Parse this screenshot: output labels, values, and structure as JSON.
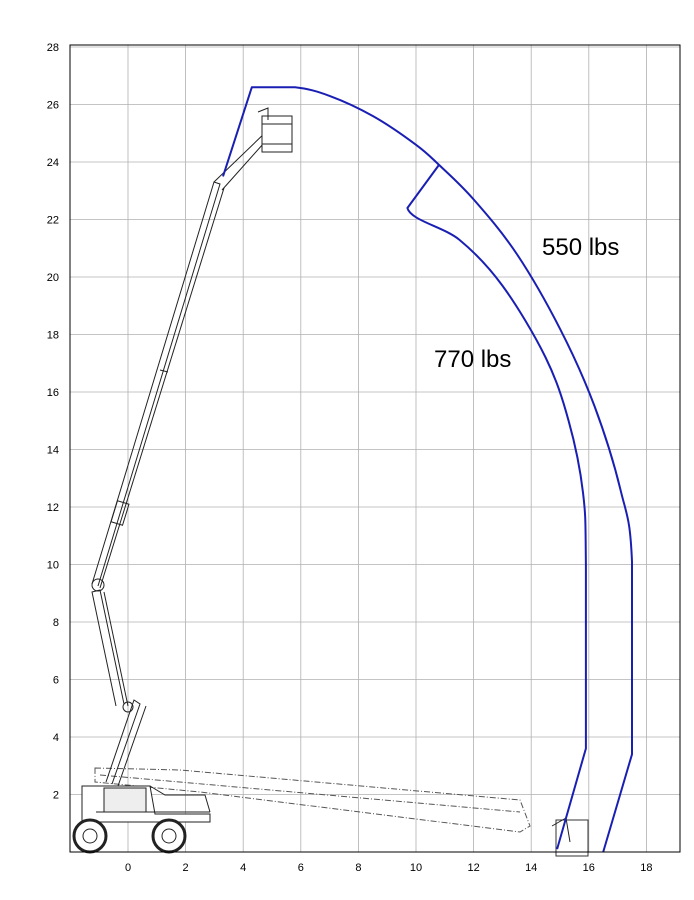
{
  "chart_data": {
    "type": "line",
    "title": "",
    "xlabel": "",
    "ylabel": "",
    "xlim": [
      -2,
      18
    ],
    "ylim": [
      0,
      28
    ],
    "x_ticks": [
      "0",
      "2",
      "4",
      "6",
      "8",
      "10",
      "12",
      "14",
      "16",
      "18"
    ],
    "y_ticks": [
      "2",
      "4",
      "6",
      "8",
      "10",
      "12",
      "14",
      "16",
      "18",
      "20",
      "22",
      "24",
      "26",
      "28"
    ],
    "grid": true,
    "series": [
      {
        "name": "550 lbs",
        "color": "#1a1fb4",
        "points": [
          [
            3.3,
            23.5
          ],
          [
            4.3,
            26.6
          ],
          [
            5.8,
            26.6
          ],
          [
            7,
            26.3
          ],
          [
            8.5,
            25.6
          ],
          [
            10,
            24.6
          ],
          [
            10.8,
            23.9
          ],
          [
            12,
            22.7
          ],
          [
            13.5,
            20.8
          ],
          [
            15,
            18.2
          ],
          [
            16.2,
            15.5
          ],
          [
            17.1,
            12.6
          ],
          [
            17.5,
            10.1
          ],
          [
            17.5,
            3.4
          ],
          [
            16.5,
            0
          ]
        ]
      },
      {
        "name": "770 lbs",
        "color": "#1a1fb4",
        "points": [
          [
            10.8,
            23.9
          ],
          [
            9.7,
            22.4
          ],
          [
            11.5,
            21.3
          ],
          [
            13,
            19.7
          ],
          [
            14.5,
            17.2
          ],
          [
            15.3,
            15
          ],
          [
            15.8,
            12.5
          ],
          [
            15.9,
            10
          ],
          [
            15.9,
            3.6
          ],
          [
            14.9,
            0.1
          ]
        ]
      }
    ]
  },
  "labels": {
    "load_550": "550 lbs",
    "load_770": "770 lbs"
  },
  "colors": {
    "envelope": "#1a1fb4",
    "grid": "#b0b0b0",
    "machine": "#222222"
  },
  "icons": {
    "machine": "articulating-boom-lift-outline"
  }
}
